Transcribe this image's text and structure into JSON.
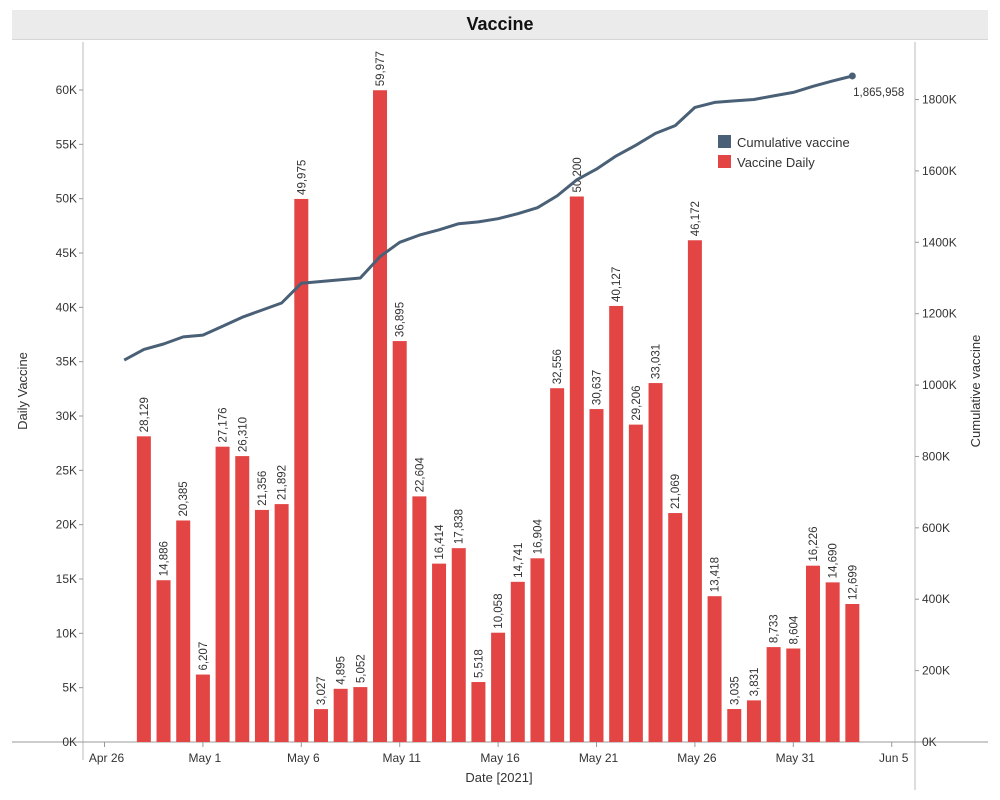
{
  "chart_data": {
    "type": "bar",
    "title": "Vaccine",
    "xlabel": "Date [2021]",
    "ylabel": "Daily Vaccine",
    "y2label": "Cumulative vaccine",
    "ylim": [
      0,
      65000
    ],
    "y2lim": [
      0,
      1950000
    ],
    "x_ticks": [
      "Apr 26",
      "May 1",
      "May 6",
      "May 11",
      "May 16",
      "May 21",
      "May 26",
      "May 31",
      "Jun 5"
    ],
    "y_ticks": [
      "0K",
      "5K",
      "10K",
      "15K",
      "20K",
      "25K",
      "30K",
      "35K",
      "40K",
      "45K",
      "50K",
      "55K",
      "60K"
    ],
    "y2_ticks": [
      "0K",
      "200K",
      "400K",
      "600K",
      "800K",
      "1000K",
      "1200K",
      "1400K",
      "1600K",
      "1800K"
    ],
    "dates": [
      "2021-04-28",
      "2021-04-29",
      "2021-04-30",
      "2021-05-01",
      "2021-05-02",
      "2021-05-03",
      "2021-05-04",
      "2021-05-05",
      "2021-05-06",
      "2021-05-07",
      "2021-05-08",
      "2021-05-09",
      "2021-05-10",
      "2021-05-11",
      "2021-05-12",
      "2021-05-13",
      "2021-05-14",
      "2021-05-15",
      "2021-05-16",
      "2021-05-17",
      "2021-05-18",
      "2021-05-19",
      "2021-05-20",
      "2021-05-21",
      "2021-05-22",
      "2021-05-23",
      "2021-05-24",
      "2021-05-25",
      "2021-05-26",
      "2021-05-27",
      "2021-05-28",
      "2021-05-29",
      "2021-05-30",
      "2021-05-31",
      "2021-06-01",
      "2021-06-02",
      "2021-06-03"
    ],
    "series": [
      {
        "name": "Vaccine Daily",
        "type": "bar",
        "color": "#e34444",
        "values": [
          28129,
          14886,
          20385,
          6207,
          27176,
          26310,
          21356,
          21892,
          49975,
          3027,
          4895,
          5052,
          59977,
          36895,
          22604,
          16414,
          17838,
          5518,
          10058,
          14741,
          16904,
          32556,
          50200,
          30637,
          40127,
          29206,
          33031,
          21069,
          46172,
          13418,
          3035,
          3831,
          8733,
          8604,
          16226,
          14690,
          12699
        ],
        "labels": [
          "28,129",
          "14,886",
          "20,385",
          "6,207",
          "27,176",
          "26,310",
          "21,356",
          "21,892",
          "49,975",
          "3,027",
          "4,895",
          "5,052",
          "59,977",
          "36,895",
          "22,604",
          "16,414",
          "17,838",
          "5,518",
          "10,058",
          "14,741",
          "16,904",
          "32,556",
          "50,200",
          "30,637",
          "40,127",
          "29,206",
          "33,031",
          "21,069",
          "46,172",
          "13,418",
          "3,035",
          "3,831",
          "8,733",
          "8,604",
          "16,226",
          "14,690",
          "12,699"
        ]
      },
      {
        "name": "Cumulative vaccine",
        "type": "line",
        "axis": "right",
        "color": "#4a6076",
        "x": [
          "2021-04-27",
          "2021-04-28",
          "2021-04-29",
          "2021-04-30",
          "2021-05-01",
          "2021-05-02",
          "2021-05-03",
          "2021-05-04",
          "2021-05-05",
          "2021-05-06",
          "2021-05-07",
          "2021-05-08",
          "2021-05-09",
          "2021-05-10",
          "2021-05-11",
          "2021-05-12",
          "2021-05-13",
          "2021-05-14",
          "2021-05-15",
          "2021-05-16",
          "2021-05-17",
          "2021-05-18",
          "2021-05-19",
          "2021-05-20",
          "2021-05-21",
          "2021-05-22",
          "2021-05-23",
          "2021-05-24",
          "2021-05-25",
          "2021-05-26",
          "2021-05-27",
          "2021-05-28",
          "2021-05-29",
          "2021-05-30",
          "2021-05-31",
          "2021-06-01",
          "2021-06-02",
          "2021-06-03"
        ],
        "values": [
          1070000,
          1100000,
          1115000,
          1135000,
          1140000,
          1165000,
          1190000,
          1210000,
          1230000,
          1285000,
          1290000,
          1295000,
          1300000,
          1360000,
          1400000,
          1420000,
          1435000,
          1452000,
          1457000,
          1466000,
          1480000,
          1497000,
          1530000,
          1575000,
          1605000,
          1642000,
          1672000,
          1705000,
          1727000,
          1778000,
          1792000,
          1796000,
          1800000,
          1810000,
          1820000,
          1837000,
          1852000,
          1865958
        ],
        "end_label": "1,865,958"
      }
    ],
    "legend": {
      "position": "top-right",
      "items": [
        {
          "label": "Cumulative vaccine",
          "color": "#4a6076"
        },
        {
          "label": "Vaccine Daily",
          "color": "#e34444"
        }
      ]
    },
    "grid": false
  }
}
